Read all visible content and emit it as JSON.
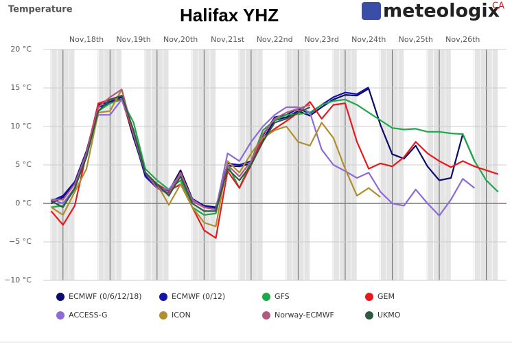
{
  "chart_data": {
    "type": "line",
    "title": "Halifax YHZ",
    "y_label": "Temperature",
    "brand": "meteologix",
    "brand_region": "CA",
    "x": [
      17.75,
      18,
      18.25,
      18.5,
      18.75,
      19,
      19.25,
      19.5,
      19.75,
      20,
      20.25,
      20.5,
      20.75,
      21,
      21.25,
      21.5,
      21.75,
      22,
      22.25,
      22.5,
      22.75,
      23,
      23.25,
      23.5,
      23.75,
      24,
      24.25,
      24.5,
      24.75,
      25,
      25.25,
      25.5,
      25.75,
      26,
      26.25,
      26.5,
      26.75,
      27,
      27.25
    ],
    "xlim": [
      17.58,
      27.43
    ],
    "xticks": [
      {
        "value": 18.5,
        "label": "Nov,18th"
      },
      {
        "value": 19.5,
        "label": "Nov,19th"
      },
      {
        "value": 20.5,
        "label": "Nov,20th"
      },
      {
        "value": 21.5,
        "label": "Nov,21st"
      },
      {
        "value": 22.5,
        "label": "Nov,22nd"
      },
      {
        "value": 23.5,
        "label": "Nov,23rd"
      },
      {
        "value": 24.5,
        "label": "Nov,24th"
      },
      {
        "value": 25.5,
        "label": "Nov,25th"
      },
      {
        "value": 26.5,
        "label": "Nov,26th"
      }
    ],
    "ylim": [
      -10,
      20
    ],
    "yticks": [
      {
        "value": -10,
        "label": "−10 °C"
      },
      {
        "value": -5,
        "label": "−5 °C"
      },
      {
        "value": 0,
        "label": "0 °C"
      },
      {
        "value": 5,
        "label": "5 °C"
      },
      {
        "value": 10,
        "label": "10 °C"
      },
      {
        "value": 15,
        "label": "15 °C"
      },
      {
        "value": 20,
        "label": "20 °C"
      }
    ],
    "grid": true,
    "series": [
      {
        "name": "ECMWF (0/6/12/18)",
        "color": "#0b0b6b",
        "values": [
          0.0,
          0.8,
          2.5,
          6.5,
          12.8,
          13.2,
          13.8,
          8.5,
          3.8,
          2.2,
          1.6,
          4.3,
          0.6,
          -0.3,
          -0.5,
          4.9,
          4.8,
          5.2,
          8.3,
          10.8,
          11.2,
          12.0,
          11.4,
          12.5,
          13.5,
          14.1,
          14.0,
          14.9,
          10.2,
          6.4,
          5.8,
          7.5,
          4.8,
          3.0,
          3.3,
          9.0,
          5.5,
          null,
          null
        ]
      },
      {
        "name": "ECMWF (0/12)",
        "color": "#1414a8",
        "values": [
          0.3,
          1.0,
          2.8,
          6.8,
          12.5,
          13.0,
          14.0,
          8.8,
          3.5,
          2.0,
          1.3,
          4.0,
          0.3,
          -0.4,
          -0.6,
          5.2,
          5.0,
          5.5,
          8.8,
          11.2,
          11.5,
          12.3,
          11.7,
          12.8,
          13.8,
          14.4,
          14.2,
          15.1,
          null,
          null,
          null,
          null,
          null,
          null,
          null,
          null,
          null,
          null,
          null
        ]
      },
      {
        "name": "GFS",
        "color": "#1fa84a",
        "values": [
          -0.5,
          -0.3,
          1.8,
          6.5,
          12.0,
          13.0,
          13.5,
          10.5,
          4.5,
          3.0,
          1.8,
          3.0,
          -0.5,
          -1.5,
          -1.3,
          5.0,
          2.0,
          5.5,
          9.5,
          10.8,
          11.5,
          11.6,
          11.8,
          12.8,
          13.3,
          13.5,
          12.8,
          11.8,
          10.8,
          9.8,
          9.6,
          9.7,
          9.3,
          9.3,
          9.1,
          9.0,
          5.5,
          3.0,
          1.5
        ]
      },
      {
        "name": "GEM",
        "color": "#e8191c",
        "values": [
          -1.0,
          -2.8,
          -0.3,
          6.5,
          13.0,
          13.5,
          13.5,
          9.0,
          4.0,
          2.5,
          1.6,
          2.5,
          -0.5,
          -3.5,
          -4.5,
          4.2,
          2.0,
          5.0,
          8.5,
          9.7,
          10.7,
          11.8,
          13.2,
          11.0,
          12.8,
          13.0,
          8.0,
          4.5,
          5.2,
          4.8,
          6.0,
          8.0,
          6.5,
          5.5,
          4.7,
          5.5,
          4.8,
          4.3,
          3.8
        ]
      },
      {
        "name": "ACCESS-G",
        "color": "#8c6bd6",
        "values": [
          0.5,
          0.0,
          2.0,
          6.5,
          11.5,
          11.5,
          13.5,
          9.5,
          4.0,
          2.0,
          1.8,
          3.8,
          0.5,
          -0.5,
          -0.8,
          6.5,
          5.5,
          8.0,
          10.0,
          11.5,
          12.5,
          12.5,
          11.8,
          7.0,
          5.0,
          4.2,
          3.3,
          4.0,
          1.5,
          0.0,
          -0.3,
          1.8,
          0.0,
          -1.6,
          0.5,
          3.2,
          2.0,
          null,
          null
        ]
      },
      {
        "name": "ICON",
        "color": "#b08e2e",
        "values": [
          -0.5,
          -1.5,
          1.5,
          4.5,
          11.8,
          12.0,
          14.8,
          9.0,
          4.0,
          2.5,
          -0.2,
          2.5,
          -0.5,
          -2.5,
          -3.0,
          5.5,
          4.0,
          6.5,
          8.5,
          9.5,
          10.0,
          8.0,
          7.5,
          10.5,
          8.5,
          4.5,
          1.0,
          2.0,
          0.8,
          null,
          null,
          null,
          null,
          null,
          null,
          null,
          null,
          null,
          null
        ]
      },
      {
        "name": "Norway-ECMWF",
        "color": "#b05a80",
        "values": [
          0.5,
          0.5,
          2.5,
          6.5,
          12.5,
          13.8,
          14.8,
          9.0,
          4.0,
          2.0,
          1.2,
          4.0,
          0.3,
          -0.5,
          -0.8,
          5.0,
          3.5,
          5.5,
          9.0,
          11.0,
          11.8,
          12.3,
          12.8,
          null,
          null,
          null,
          null,
          null,
          null,
          null,
          null,
          null,
          null,
          null,
          null,
          null,
          null,
          null,
          null
        ]
      },
      {
        "name": "UKMO",
        "color": "#2e5a42",
        "values": [
          0.3,
          -0.5,
          2.0,
          6.0,
          12.0,
          13.5,
          14.0,
          9.5,
          4.0,
          2.5,
          1.0,
          3.5,
          0.0,
          -1.0,
          -1.0,
          4.5,
          3.0,
          5.0,
          8.0,
          10.5,
          11.0,
          11.8,
          12.5,
          null,
          null,
          null,
          null,
          null,
          null,
          null,
          null,
          null,
          null,
          null,
          null,
          null,
          null,
          null,
          null
        ]
      }
    ]
  }
}
